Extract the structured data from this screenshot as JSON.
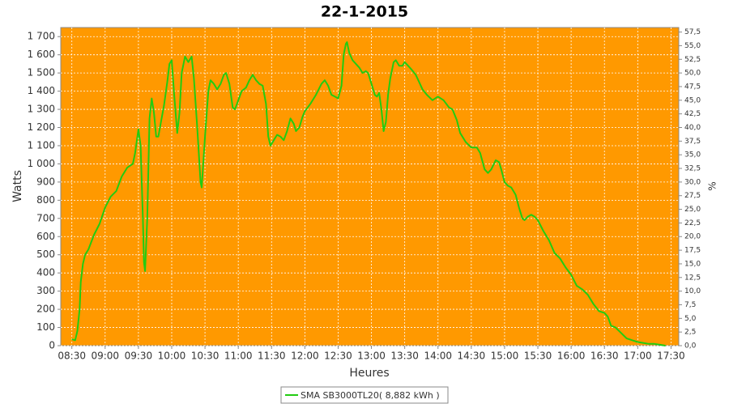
{
  "chart_data": {
    "type": "line",
    "title": "22-1-2015",
    "x_label": "Heures",
    "y_label": "Watts",
    "y2_label": "%",
    "background": "#ff9900",
    "grid": true,
    "legend": "bottom",
    "x": [
      "08:30",
      "08:33",
      "08:35",
      "08:37",
      "08:38",
      "08:40",
      "08:42",
      "08:45",
      "08:50",
      "08:55",
      "09:00",
      "09:05",
      "09:10",
      "09:15",
      "09:20",
      "09:25",
      "09:27",
      "09:30",
      "09:32",
      "09:34",
      "09:35",
      "09:36",
      "09:38",
      "09:40",
      "09:42",
      "09:44",
      "09:46",
      "09:48",
      "09:50",
      "09:53",
      "09:56",
      "09:58",
      "10:00",
      "10:02",
      "10:05",
      "10:07",
      "10:09",
      "10:12",
      "10:15",
      "10:18",
      "10:20",
      "10:23",
      "10:26",
      "10:27",
      "10:30",
      "10:33",
      "10:35",
      "10:38",
      "10:41",
      "10:44",
      "10:47",
      "10:49",
      "10:52",
      "10:55",
      "10:57",
      "11:00",
      "11:03",
      "11:07",
      "11:10",
      "11:13",
      "11:16",
      "11:19",
      "11:22",
      "11:25",
      "11:27",
      "11:29",
      "11:32",
      "11:35",
      "11:38",
      "11:41",
      "11:44",
      "11:47",
      "11:50",
      "11:52",
      "11:55",
      "11:58",
      "12:00",
      "12:05",
      "12:10",
      "12:15",
      "12:18",
      "12:21",
      "12:24",
      "12:27",
      "12:30",
      "12:33",
      "12:35",
      "12:37",
      "12:38",
      "12:40",
      "12:43",
      "12:46",
      "12:49",
      "12:52",
      "12:55",
      "12:57",
      "13:00",
      "13:03",
      "13:05",
      "13:07",
      "13:09",
      "13:11",
      "13:13",
      "13:15",
      "13:17",
      "13:20",
      "13:22",
      "13:25",
      "13:28",
      "13:30",
      "13:33",
      "13:36",
      "13:40",
      "13:43",
      "13:46",
      "13:50",
      "13:55",
      "14:00",
      "14:05",
      "14:10",
      "14:13",
      "14:17",
      "14:20",
      "14:25",
      "14:30",
      "14:35",
      "14:38",
      "14:42",
      "14:45",
      "14:48",
      "14:52",
      "14:55",
      "14:57",
      "15:00",
      "15:03",
      "15:06",
      "15:10",
      "15:13",
      "15:16",
      "15:18",
      "15:21",
      "15:24",
      "15:27",
      "15:30",
      "15:35",
      "15:40",
      "15:45",
      "15:50",
      "15:55",
      "16:00",
      "16:05",
      "16:10",
      "16:15",
      "16:20",
      "16:25",
      "16:30",
      "16:33",
      "16:36",
      "16:40",
      "16:45",
      "16:50",
      "16:55",
      "17:00",
      "17:05",
      "17:10",
      "17:15",
      "17:20",
      "17:25"
    ],
    "series": [
      {
        "name": "SMA SB3000TL20( 8,882 kWh )",
        "color": "#22cc11",
        "values": [
          35,
          30,
          80,
          200,
          350,
          450,
          500,
          530,
          610,
          670,
          760,
          820,
          850,
          930,
          980,
          1000,
          1060,
          1190,
          1100,
          700,
          460,
          410,
          700,
          1250,
          1360,
          1280,
          1150,
          1150,
          1220,
          1320,
          1450,
          1550,
          1570,
          1400,
          1170,
          1280,
          1500,
          1590,
          1560,
          1590,
          1470,
          1200,
          900,
          870,
          1150,
          1400,
          1460,
          1440,
          1410,
          1440,
          1490,
          1500,
          1440,
          1310,
          1300,
          1350,
          1400,
          1420,
          1460,
          1490,
          1460,
          1440,
          1430,
          1330,
          1150,
          1100,
          1130,
          1160,
          1150,
          1130,
          1180,
          1250,
          1220,
          1180,
          1200,
          1260,
          1290,
          1330,
          1380,
          1440,
          1460,
          1430,
          1380,
          1370,
          1360,
          1430,
          1600,
          1660,
          1670,
          1610,
          1570,
          1550,
          1530,
          1500,
          1510,
          1500,
          1440,
          1380,
          1370,
          1390,
          1300,
          1180,
          1230,
          1380,
          1470,
          1560,
          1570,
          1540,
          1540,
          1560,
          1540,
          1520,
          1490,
          1450,
          1410,
          1380,
          1350,
          1370,
          1350,
          1310,
          1300,
          1240,
          1170,
          1120,
          1090,
          1090,
          1060,
          970,
          950,
          970,
          1020,
          1010,
          970,
          900,
          880,
          870,
          830,
          760,
          700,
          690,
          710,
          720,
          710,
          690,
          630,
          580,
          510,
          480,
          430,
          390,
          330,
          310,
          280,
          230,
          190,
          180,
          160,
          110,
          100,
          70,
          40,
          30,
          20,
          15,
          10,
          10,
          5,
          0
        ]
      }
    ],
    "xlim": [
      "08:20",
      "17:37"
    ],
    "xticks": [
      "08:30",
      "09:00",
      "09:30",
      "10:00",
      "10:30",
      "11:00",
      "11:30",
      "12:00",
      "12:30",
      "13:00",
      "13:30",
      "14:00",
      "14:30",
      "15:00",
      "15:30",
      "16:00",
      "16:30",
      "17:00",
      "17:30"
    ],
    "ylim": [
      0,
      1750
    ],
    "yticks": [
      0,
      100,
      200,
      300,
      400,
      500,
      600,
      700,
      800,
      900,
      {
        "value": 1000,
        "label": "1 000"
      },
      {
        "value": 1100,
        "label": "1 100"
      },
      {
        "value": 1200,
        "label": "1 200"
      },
      {
        "value": 1300,
        "label": "1 300"
      },
      {
        "value": 1400,
        "label": "1 400"
      },
      {
        "value": 1500,
        "label": "1 500"
      },
      {
        "value": 1600,
        "label": "1 600"
      },
      {
        "value": 1700,
        "label": "1 700"
      }
    ],
    "y2lim": [
      0,
      58.33
    ],
    "y2ticks": [
      {
        "value": 0,
        "label": "0,0"
      },
      {
        "value": 2.5,
        "label": "2,5"
      },
      {
        "value": 5,
        "label": "5,0"
      },
      {
        "value": 7.5,
        "label": "7,5"
      },
      {
        "value": 10,
        "label": "10,0"
      },
      {
        "value": 12.5,
        "label": "12,5"
      },
      {
        "value": 15,
        "label": "15,0"
      },
      {
        "value": 17.5,
        "label": "17,5"
      },
      {
        "value": 20,
        "label": "20,0"
      },
      {
        "value": 22.5,
        "label": "22,5"
      },
      {
        "value": 25,
        "label": "25,0"
      },
      {
        "value": 27.5,
        "label": "27,5"
      },
      {
        "value": 30,
        "label": "30,0"
      },
      {
        "value": 32.5,
        "label": "32,5"
      },
      {
        "value": 35,
        "label": "35,0"
      },
      {
        "value": 37.5,
        "label": "37,5"
      },
      {
        "value": 40,
        "label": "40,0"
      },
      {
        "value": 42.5,
        "label": "42,5"
      },
      {
        "value": 45,
        "label": "45,0"
      },
      {
        "value": 47.5,
        "label": "47,5"
      },
      {
        "value": 50,
        "label": "50,0"
      },
      {
        "value": 52.5,
        "label": "52,5"
      },
      {
        "value": 55,
        "label": "55,0"
      },
      {
        "value": 57.5,
        "label": "57,5"
      }
    ]
  }
}
